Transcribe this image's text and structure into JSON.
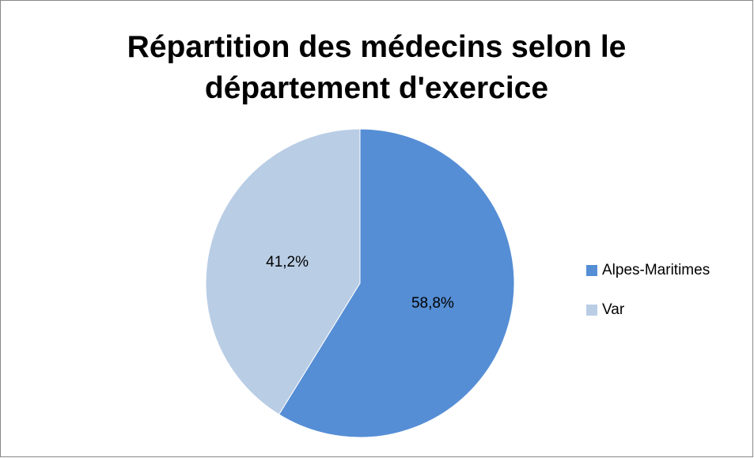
{
  "chart_data": {
    "type": "pie",
    "title": "Répartition des médecins selon le département d'exercice",
    "categories": [
      "Alpes-Maritimes",
      "Var"
    ],
    "values": [
      58.8,
      41.2
    ],
    "value_labels": [
      "58,8%",
      "41,2%"
    ],
    "colors": [
      "#558ed5",
      "#b9cde5"
    ],
    "legend": "right"
  }
}
